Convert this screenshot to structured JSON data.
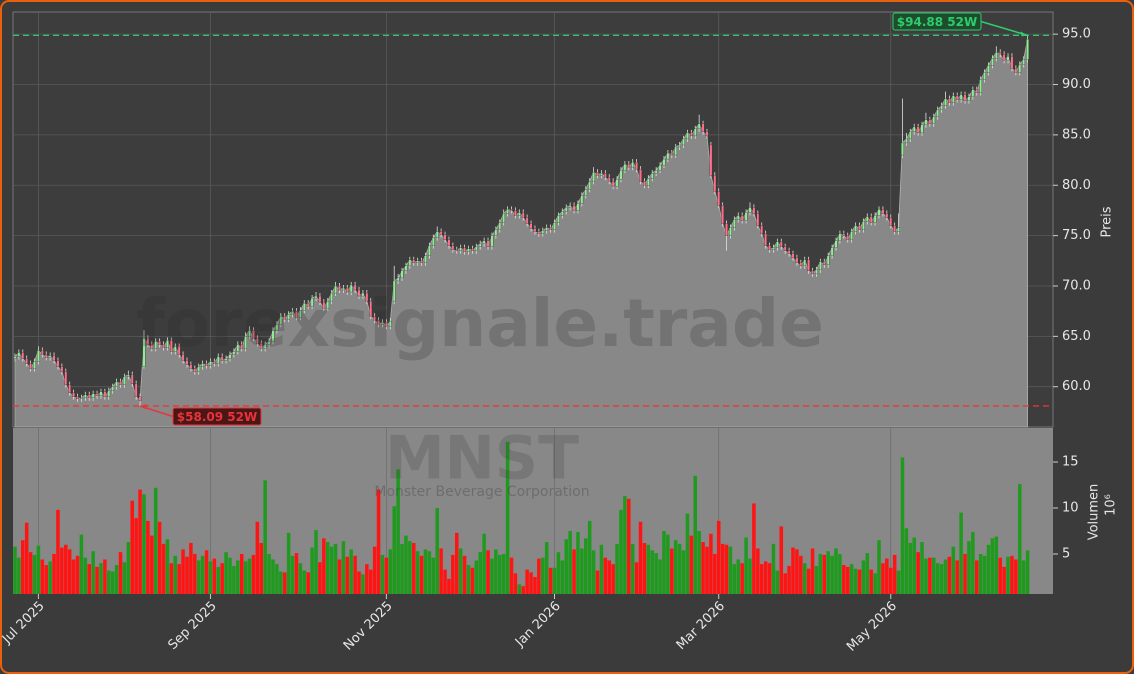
{
  "chart_data": {
    "type": "candlestick",
    "watermark": "forexsignale.trade",
    "symbol": "MNST",
    "company": "Monster Beverage Corporation",
    "ylabel": "Preis",
    "volume_label": "Volumen",
    "volume_unit": "10⁶",
    "ylim": [
      56.0,
      97.2
    ],
    "yticks": [
      {
        "value": 60,
        "label": "60.0"
      },
      {
        "value": 65,
        "label": "65.0"
      },
      {
        "value": 70,
        "label": "70.0"
      },
      {
        "value": 75,
        "label": "75.0"
      },
      {
        "value": 80,
        "label": "80.0"
      },
      {
        "value": 85,
        "label": "85.0"
      },
      {
        "value": 90,
        "label": "90.0"
      },
      {
        "value": 95,
        "label": "95.0"
      }
    ],
    "volume_ylim": [
      0.65,
      18.7
    ],
    "volume_yticks": [
      5,
      10,
      15
    ],
    "grid": true,
    "up_color": "#90ee90",
    "down_color": "#ff6f8a",
    "volume_up_color": "#1f9a1f",
    "volume_down_color": "#ff1414",
    "area_color": "#888888",
    "annotations": [
      {
        "text": "$94.88 52W",
        "value": 94.88,
        "color": "#2ecc71"
      },
      {
        "text": "$58.09 52W",
        "value": 58.09,
        "color": "#e8343a"
      }
    ],
    "categories": [
      null,
      null,
      null,
      null,
      null,
      null,
      "Jul 2025",
      null,
      null,
      null,
      null,
      null,
      null,
      null,
      null,
      null,
      null,
      null,
      null,
      null,
      null,
      null,
      null,
      null,
      null,
      null,
      null,
      null,
      null,
      null,
      null,
      null,
      null,
      null,
      null,
      null,
      null,
      null,
      null,
      null,
      null,
      null,
      null,
      null,
      null,
      null,
      null,
      null,
      null,
      null,
      "Sep 2025",
      null,
      null,
      null,
      null,
      null,
      null,
      null,
      null,
      null,
      null,
      null,
      null,
      null,
      null,
      null,
      null,
      null,
      null,
      null,
      null,
      null,
      null,
      null,
      null,
      null,
      null,
      null,
      null,
      null,
      null,
      null,
      null,
      null,
      null,
      null,
      null,
      null,
      null,
      null,
      null,
      null,
      null,
      null,
      null,
      "Nov 2025",
      null,
      null,
      null,
      null,
      null,
      null,
      null,
      null,
      null,
      null,
      null,
      null,
      null,
      null,
      null,
      null,
      null,
      null,
      null,
      null,
      null,
      null,
      null,
      null,
      null,
      null,
      null,
      null,
      null,
      null,
      null,
      null,
      null,
      null,
      null,
      null,
      null,
      null,
      null,
      null,
      null,
      null,
      "Jan 2026",
      null,
      null,
      null,
      null,
      null,
      null,
      null,
      null,
      null,
      null,
      null,
      null,
      null,
      null,
      null,
      null,
      null,
      null,
      null,
      null,
      null,
      null,
      null,
      null,
      null,
      null,
      null,
      null,
      null,
      null,
      null,
      null,
      null,
      null,
      null,
      null,
      null,
      null,
      null,
      null,
      null,
      "Mar 2026",
      null,
      null,
      null,
      null,
      null,
      null,
      null,
      null,
      null,
      null,
      null,
      null,
      null,
      null,
      null,
      null,
      null,
      null,
      null,
      null,
      null,
      null,
      null,
      null,
      null,
      null,
      null,
      null,
      null,
      null,
      null,
      null,
      null,
      null,
      null,
      null,
      null,
      null,
      null,
      null,
      null,
      null,
      null,
      "May 2026",
      null,
      null,
      null,
      null,
      null,
      null,
      null,
      null,
      null,
      null,
      null,
      null,
      null,
      null,
      null,
      null,
      null,
      null,
      null,
      null,
      null,
      null,
      null,
      null,
      null,
      null,
      null,
      null,
      null,
      null,
      null,
      null,
      null,
      null,
      null
    ],
    "open": [
      62.8,
      63.0,
      63.4,
      62.8,
      62.3,
      61.8,
      62.5,
      63.6,
      63.2,
      62.9,
      63.1,
      62.6,
      62.0,
      61.5,
      60.2,
      59.4,
      59.0,
      58.8,
      58.9,
      59.2,
      58.9,
      59.3,
      59.1,
      59.5,
      59.0,
      59.6,
      60.0,
      60.5,
      60.2,
      61.0,
      61.2,
      60.3,
      59.0,
      62.0,
      64.8,
      64.2,
      63.8,
      64.5,
      64.2,
      63.9,
      64.6,
      63.5,
      64.0,
      63.2,
      62.6,
      62.2,
      61.8,
      61.5,
      62.0,
      62.3,
      62.1,
      62.5,
      62.3,
      63.0,
      62.6,
      62.8,
      63.2,
      63.5,
      64.2,
      63.8,
      65.0,
      65.6,
      64.8,
      64.3,
      63.8,
      64.2,
      64.5,
      65.6,
      66.2,
      67.0,
      66.7,
      67.2,
      67.5,
      66.9,
      67.6,
      68.3,
      68.0,
      68.8,
      69.0,
      68.4,
      67.8,
      68.5,
      69.3,
      70.0,
      69.6,
      69.8,
      69.4,
      70.1,
      69.6,
      69.0,
      69.3,
      68.5,
      67.0,
      66.6,
      66.2,
      66.4,
      66.0,
      68.5,
      70.5,
      70.8,
      71.5,
      72.0,
      72.6,
      72.3,
      72.5,
      72.3,
      73.0,
      74.0,
      74.8,
      75.4,
      75.1,
      74.6,
      74.0,
      73.6,
      73.5,
      73.8,
      73.4,
      73.7,
      73.5,
      73.9,
      74.2,
      74.5,
      73.9,
      75.0,
      75.6,
      76.3,
      77.2,
      77.6,
      77.5,
      77.0,
      77.3,
      76.8,
      76.2,
      75.7,
      75.4,
      75.2,
      75.5,
      75.8,
      75.6,
      76.3,
      77.0,
      77.4,
      77.8,
      78.0,
      77.5,
      78.2,
      79.0,
      79.6,
      80.4,
      81.3,
      81.0,
      81.2,
      80.8,
      80.4,
      79.9,
      80.6,
      81.5,
      82.1,
      81.8,
      82.3,
      81.6,
      80.4,
      80.0,
      80.7,
      81.2,
      81.5,
      82.0,
      82.6,
      83.2,
      83.0,
      83.8,
      84.0,
      84.6,
      85.2,
      84.9,
      85.6,
      86.1,
      85.3,
      84.0,
      81.0,
      79.4,
      78.0,
      76.2,
      75.0,
      75.8,
      76.6,
      77.0,
      76.5,
      77.3,
      77.8,
      77.2,
      76.0,
      75.2,
      74.0,
      73.6,
      73.8,
      74.4,
      73.9,
      73.5,
      73.2,
      72.8,
      72.3,
      72.0,
      72.6,
      71.5,
      71.2,
      71.6,
      72.4,
      72.1,
      73.0,
      73.8,
      74.5,
      75.2,
      75.0,
      74.6,
      75.4,
      76.0,
      75.6,
      76.4,
      76.9,
      76.3,
      77.0,
      77.6,
      77.2,
      76.8,
      76.0,
      75.4,
      83.0,
      84.2,
      84.6,
      85.3,
      85.8,
      85.2,
      86.0,
      86.5,
      86.1,
      86.8,
      87.5,
      87.9,
      88.6,
      88.2,
      88.9,
      88.5,
      89.0,
      88.4,
      88.8,
      89.5,
      89.2,
      90.5,
      91.2,
      91.9,
      92.6,
      93.2,
      93.0,
      92.4,
      92.8,
      91.6,
      91.2,
      92.0,
      92.5
    ],
    "high": [
      63.3,
      63.7,
      63.7,
      63.1,
      62.6,
      62.8,
      64.0,
      63.9,
      63.5,
      63.4,
      63.4,
      62.9,
      62.3,
      61.8,
      60.5,
      59.7,
      59.3,
      59.2,
      59.5,
      59.5,
      59.6,
      59.6,
      59.8,
      59.8,
      59.9,
      60.3,
      60.8,
      60.8,
      61.3,
      61.6,
      61.5,
      60.6,
      59.3,
      65.6,
      65.1,
      64.5,
      64.8,
      64.8,
      64.5,
      64.9,
      64.9,
      64.3,
      64.3,
      63.5,
      62.9,
      62.5,
      62.1,
      62.3,
      62.6,
      62.6,
      62.8,
      62.8,
      63.3,
      63.3,
      63.1,
      63.5,
      63.8,
      64.5,
      64.5,
      65.4,
      66.0,
      65.9,
      65.1,
      64.6,
      64.5,
      64.8,
      65.9,
      66.5,
      67.3,
      67.3,
      67.5,
      67.8,
      67.8,
      67.9,
      68.6,
      68.6,
      69.1,
      69.4,
      69.3,
      68.7,
      68.8,
      69.6,
      70.4,
      70.3,
      70.1,
      70.1,
      70.4,
      70.4,
      69.9,
      69.6,
      69.6,
      68.8,
      67.3,
      66.9,
      66.7,
      66.7,
      66.8,
      72.0,
      71.2,
      71.8,
      72.3,
      72.9,
      72.9,
      72.8,
      72.8,
      73.3,
      74.3,
      75.1,
      75.9,
      75.7,
      75.4,
      74.9,
      74.3,
      73.9,
      74.1,
      74.1,
      74.0,
      74.0,
      74.2,
      74.5,
      74.8,
      74.8,
      75.3,
      75.9,
      76.6,
      77.6,
      77.9,
      77.9,
      77.8,
      77.6,
      77.6,
      77.1,
      76.5,
      76.0,
      75.7,
      75.8,
      76.1,
      76.1,
      76.6,
      77.3,
      77.7,
      78.1,
      78.3,
      78.3,
      78.5,
      79.3,
      79.9,
      80.7,
      81.8,
      81.6,
      81.5,
      81.5,
      81.1,
      80.7,
      80.9,
      81.8,
      82.4,
      82.4,
      82.6,
      82.6,
      81.9,
      80.7,
      81.0,
      81.5,
      81.8,
      82.3,
      82.9,
      83.5,
      83.5,
      84.1,
      84.3,
      84.9,
      85.5,
      85.5,
      85.9,
      87.0,
      86.4,
      85.6,
      84.3,
      81.3,
      79.7,
      78.3,
      76.5,
      76.1,
      76.9,
      77.3,
      77.3,
      77.6,
      78.3,
      78.1,
      77.5,
      76.3,
      75.5,
      74.3,
      74.1,
      74.7,
      74.7,
      74.2,
      73.8,
      73.5,
      73.1,
      72.6,
      72.9,
      72.9,
      71.8,
      71.9,
      72.7,
      72.7,
      73.3,
      74.1,
      74.8,
      75.5,
      75.5,
      75.3,
      75.7,
      76.3,
      76.3,
      76.7,
      77.2,
      77.2,
      77.3,
      77.9,
      77.9,
      77.5,
      77.1,
      76.3,
      77.2,
      88.6,
      85.2,
      85.6,
      86.1,
      86.1,
      86.3,
      87.2,
      86.8,
      87.1,
      87.8,
      88.2,
      89.3,
      88.9,
      89.2,
      89.2,
      89.3,
      89.3,
      89.1,
      89.8,
      89.8,
      90.8,
      91.5,
      92.2,
      92.9,
      93.8,
      93.5,
      93.3,
      93.1,
      93.1,
      91.9,
      92.3,
      92.8,
      94.88
    ],
    "low": [
      62.5,
      62.7,
      62.5,
      62.0,
      61.5,
      61.5,
      62.2,
      62.9,
      62.6,
      62.6,
      62.3,
      61.7,
      61.2,
      59.9,
      59.1,
      58.7,
      58.5,
      58.5,
      58.6,
      58.6,
      58.6,
      58.8,
      58.8,
      58.7,
      58.7,
      59.3,
      59.7,
      59.9,
      59.9,
      60.7,
      60.0,
      58.7,
      58.09,
      61.8,
      63.9,
      63.5,
      63.5,
      63.9,
      63.6,
      63.6,
      63.2,
      63.2,
      62.9,
      62.3,
      61.9,
      61.5,
      61.2,
      61.2,
      61.7,
      61.8,
      61.8,
      62.0,
      62.0,
      62.3,
      62.3,
      62.5,
      62.9,
      63.2,
      63.5,
      63.5,
      64.7,
      64.5,
      64.0,
      63.5,
      63.5,
      63.9,
      64.2,
      65.3,
      65.9,
      66.4,
      66.4,
      66.9,
      66.6,
      66.6,
      67.3,
      67.7,
      67.7,
      68.5,
      68.1,
      67.5,
      67.5,
      68.2,
      69.0,
      69.3,
      69.3,
      69.1,
      69.1,
      69.3,
      68.7,
      68.7,
      68.2,
      66.7,
      66.3,
      65.9,
      65.9,
      65.7,
      65.7,
      68.2,
      70.2,
      70.5,
      71.2,
      71.7,
      72.0,
      72.0,
      72.0,
      72.0,
      72.7,
      73.7,
      74.5,
      74.8,
      74.3,
      73.7,
      73.3,
      73.2,
      73.2,
      73.1,
      73.1,
      73.2,
      73.2,
      73.6,
      73.9,
      73.6,
      73.6,
      74.7,
      75.3,
      76.0,
      76.9,
      77.2,
      76.7,
      76.7,
      76.5,
      75.9,
      75.4,
      75.1,
      74.9,
      74.9,
      75.2,
      75.3,
      75.3,
      76.0,
      76.7,
      77.1,
      77.5,
      77.2,
      77.2,
      77.9,
      78.7,
      79.3,
      80.1,
      80.7,
      80.7,
      80.5,
      80.1,
      79.6,
      79.6,
      80.3,
      81.2,
      81.5,
      81.5,
      81.3,
      80.1,
      79.7,
      79.7,
      80.4,
      80.9,
      81.2,
      81.7,
      82.3,
      82.7,
      82.7,
      83.5,
      83.7,
      84.3,
      84.6,
      84.6,
      85.3,
      85.0,
      84.6,
      80.7,
      79.1,
      77.7,
      75.9,
      73.5,
      74.7,
      75.5,
      76.3,
      76.2,
      76.2,
      77.0,
      76.9,
      75.7,
      74.9,
      73.7,
      73.3,
      73.3,
      73.5,
      73.6,
      73.2,
      72.9,
      72.5,
      72.0,
      71.7,
      71.7,
      71.2,
      70.9,
      70.9,
      71.3,
      71.8,
      71.8,
      72.7,
      73.5,
      74.2,
      74.7,
      74.3,
      74.3,
      75.1,
      75.3,
      75.3,
      76.1,
      76.0,
      76.0,
      76.7,
      76.9,
      76.5,
      75.7,
      75.1,
      75.1,
      82.7,
      83.9,
      84.3,
      85.0,
      84.9,
      84.9,
      85.7,
      85.8,
      85.8,
      86.5,
      87.2,
      87.6,
      87.9,
      87.9,
      88.2,
      88.2,
      88.1,
      88.1,
      88.5,
      88.9,
      88.9,
      90.2,
      90.9,
      91.6,
      92.3,
      92.7,
      92.1,
      92.1,
      91.3,
      90.9,
      90.9,
      91.7,
      92.2
    ],
    "close": [
      63.0,
      63.4,
      62.8,
      62.3,
      61.8,
      62.5,
      63.6,
      63.2,
      62.9,
      63.1,
      62.6,
      62.0,
      61.5,
      60.2,
      59.4,
      59.0,
      58.8,
      58.9,
      59.2,
      58.9,
      59.3,
      59.1,
      59.5,
      59.0,
      59.6,
      60.0,
      60.5,
      60.2,
      61.0,
      61.2,
      60.3,
      59.0,
      58.6,
      64.8,
      64.2,
      63.8,
      64.5,
      64.2,
      63.9,
      64.6,
      63.5,
      64.0,
      63.2,
      62.6,
      62.2,
      61.8,
      61.5,
      62.0,
      62.3,
      62.1,
      62.5,
      62.3,
      63.0,
      62.6,
      62.8,
      63.2,
      63.5,
      64.2,
      63.8,
      65.0,
      65.6,
      64.8,
      64.3,
      63.8,
      64.2,
      64.5,
      65.6,
      66.2,
      67.0,
      66.7,
      67.2,
      67.5,
      66.9,
      67.6,
      68.3,
      68.0,
      68.8,
      69.0,
      68.4,
      67.8,
      68.5,
      69.3,
      70.0,
      69.6,
      69.8,
      69.4,
      70.1,
      69.6,
      69.0,
      69.3,
      68.5,
      67.0,
      66.6,
      66.2,
      66.4,
      66.0,
      66.5,
      70.5,
      70.8,
      71.5,
      72.0,
      72.6,
      72.3,
      72.5,
      72.3,
      73.0,
      74.0,
      74.8,
      75.4,
      75.1,
      74.6,
      74.0,
      73.6,
      73.5,
      73.8,
      73.4,
      73.7,
      73.5,
      73.9,
      74.2,
      74.5,
      73.9,
      75.0,
      75.6,
      76.3,
      77.2,
      77.6,
      77.5,
      77.0,
      77.3,
      76.8,
      76.2,
      75.7,
      75.4,
      75.2,
      75.5,
      75.8,
      75.6,
      76.3,
      77.0,
      77.4,
      77.8,
      78.0,
      77.5,
      78.2,
      79.0,
      79.6,
      80.4,
      81.3,
      81.0,
      81.2,
      80.8,
      80.4,
      79.9,
      80.6,
      81.5,
      82.1,
      81.8,
      82.3,
      81.6,
      80.4,
      80.0,
      80.7,
      81.2,
      81.5,
      82.0,
      82.6,
      83.2,
      83.0,
      83.8,
      84.0,
      84.6,
      85.2,
      84.9,
      85.6,
      86.1,
      85.3,
      84.9,
      81.0,
      79.4,
      78.0,
      76.2,
      75.0,
      75.8,
      76.6,
      77.0,
      76.5,
      77.3,
      77.8,
      77.2,
      76.0,
      75.2,
      74.0,
      73.6,
      73.8,
      74.4,
      73.9,
      73.5,
      73.2,
      72.8,
      72.3,
      72.0,
      72.6,
      71.5,
      71.2,
      71.6,
      72.4,
      72.1,
      73.0,
      73.8,
      74.5,
      75.2,
      75.0,
      74.6,
      75.4,
      76.0,
      75.6,
      76.4,
      76.9,
      76.3,
      77.0,
      77.6,
      77.2,
      76.8,
      76.0,
      75.4,
      75.8,
      84.2,
      84.6,
      85.3,
      85.8,
      85.2,
      86.0,
      86.5,
      86.1,
      86.8,
      87.5,
      87.9,
      88.6,
      88.2,
      88.9,
      88.5,
      89.0,
      88.4,
      88.8,
      89.5,
      89.2,
      90.5,
      91.2,
      91.9,
      92.6,
      93.2,
      93.0,
      92.4,
      92.8,
      91.6,
      91.2,
      92.0,
      92.5,
      94.5
    ],
    "volume": [
      5.8,
      4.6,
      6.5,
      8.4,
      5.2,
      4.9,
      5.9,
      4.4,
      3.8,
      4.2,
      5.0,
      9.8,
      5.7,
      6.0,
      5.5,
      4.4,
      4.8,
      7.1,
      4.6,
      3.9,
      5.3,
      3.6,
      4.0,
      4.4,
      3.2,
      3.1,
      3.8,
      5.2,
      4.1,
      6.3,
      10.8,
      8.9,
      12.0,
      11.5,
      8.6,
      7.0,
      12.2,
      8.5,
      6.1,
      6.6,
      4.0,
      4.8,
      3.9,
      5.5,
      4.7,
      6.2,
      5.0,
      4.3,
      4.8,
      5.4,
      4.2,
      4.5,
      3.6,
      4.0,
      5.2,
      4.6,
      3.7,
      4.3,
      5.0,
      4.2,
      4.5,
      4.9,
      8.5,
      6.2,
      13.0,
      5.0,
      4.4,
      3.9,
      3.1,
      3.0,
      7.3,
      4.8,
      5.1,
      4.0,
      3.2,
      3.0,
      5.7,
      7.6,
      4.1,
      6.7,
      6.3,
      5.8,
      6.1,
      4.4,
      6.4,
      4.7,
      5.5,
      4.8,
      3.1,
      2.8,
      3.9,
      3.3,
      5.8,
      12.0,
      4.9,
      4.6,
      5.5,
      10.2,
      14.2,
      6.1,
      7.0,
      6.4,
      6.2,
      5.3,
      4.8,
      5.5,
      5.3,
      4.6,
      10.0,
      5.6,
      3.3,
      2.3,
      4.9,
      7.3,
      5.6,
      4.8,
      3.8,
      3.5,
      4.3,
      5.2,
      7.2,
      5.4,
      4.5,
      5.5,
      4.9,
      5.0,
      17.2,
      4.6,
      2.9,
      1.7,
      1.5,
      3.3,
      3.0,
      2.5,
      4.5,
      4.6,
      6.3,
      3.5,
      3.5,
      5.2,
      4.3,
      6.6,
      7.5,
      5.5,
      7.4,
      5.6,
      6.7,
      8.6,
      5.4,
      3.2,
      6.0,
      4.6,
      4.3,
      3.9,
      6.1,
      9.8,
      11.3,
      11.0,
      6.1,
      4.1,
      8.5,
      6.2,
      6.0,
      5.4,
      5.1,
      4.4,
      7.5,
      7.1,
      5.6,
      6.5,
      6.1,
      5.4,
      9.4,
      7.0,
      13.5,
      7.5,
      6.3,
      5.8,
      7.2,
      5.0,
      8.6,
      6.1,
      6.0,
      5.8,
      3.9,
      4.4,
      4.0,
      6.8,
      4.5,
      10.5,
      5.6,
      3.9,
      4.2,
      4.0,
      6.1,
      3.2,
      8.0,
      2.9,
      3.7,
      5.7,
      5.5,
      4.8,
      4.0,
      3.4,
      5.6,
      3.7,
      5.0,
      4.9,
      5.3,
      4.8,
      5.6,
      5.0,
      3.8,
      3.6,
      3.9,
      3.4,
      3.3,
      4.3,
      5.1,
      3.3,
      2.9,
      6.5,
      4.0,
      4.5,
      3.5,
      4.9,
      3.2,
      15.5,
      7.8,
      6.2,
      6.8,
      5.2,
      6.3,
      4.5,
      4.6,
      4.6,
      4.0,
      3.9,
      4.4,
      4.7,
      5.8,
      4.3,
      9.5,
      5.0,
      6.4,
      7.4,
      4.3,
      5.0,
      4.8,
      6.0,
      6.7,
      6.9,
      4.6,
      3.6,
      4.7,
      4.8,
      4.4,
      12.6,
      4.3,
      5.4
    ]
  }
}
